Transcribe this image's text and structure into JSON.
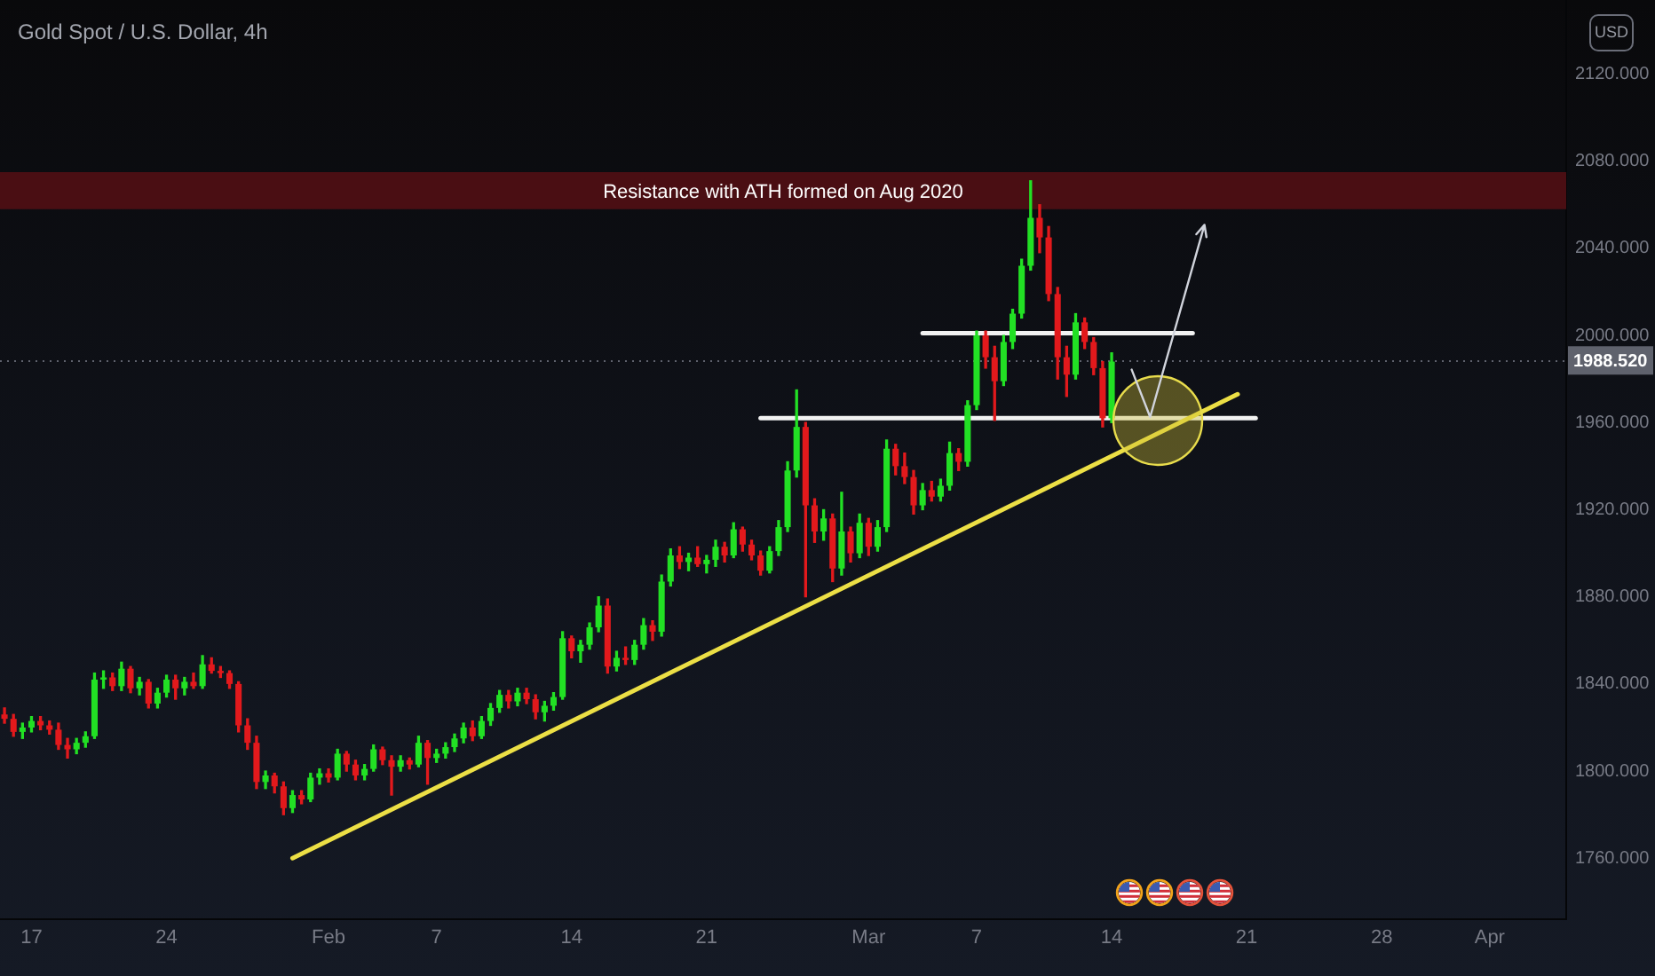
{
  "chart_data": {
    "type": "candlestick",
    "title": "Gold Spot / U.S. Dollar, 4h",
    "ylabel": "USD",
    "categories": [
      null,
      null,
      null,
      "17",
      null,
      null,
      null,
      null,
      null,
      null,
      null,
      null,
      null,
      null,
      null,
      null,
      null,
      null,
      "24",
      null,
      null,
      null,
      null,
      null,
      null,
      null,
      null,
      null,
      null,
      null,
      null,
      null,
      null,
      null,
      null,
      null,
      "Feb",
      null,
      null,
      null,
      null,
      null,
      null,
      null,
      null,
      null,
      null,
      null,
      "7",
      null,
      null,
      null,
      null,
      null,
      null,
      null,
      null,
      null,
      null,
      null,
      null,
      null,
      null,
      "14",
      null,
      null,
      null,
      null,
      null,
      null,
      null,
      null,
      null,
      null,
      null,
      null,
      null,
      null,
      "21",
      null,
      null,
      null,
      null,
      null,
      null,
      null,
      null,
      null,
      null,
      null,
      null,
      null,
      null,
      null,
      null,
      null,
      "Mar",
      null,
      null,
      null,
      null,
      null,
      null,
      null,
      null,
      null,
      null,
      null,
      "7",
      null,
      null,
      null,
      null,
      null,
      null,
      null,
      null,
      null,
      null,
      null,
      null,
      null,
      null,
      "14",
      null,
      null,
      null,
      null,
      null,
      null,
      null,
      null,
      null,
      null,
      null,
      null,
      null,
      null,
      "21",
      null,
      null,
      null,
      null,
      null,
      null,
      null,
      null,
      null,
      null,
      null,
      null,
      null,
      null,
      "28",
      null,
      null,
      null,
      null,
      null,
      null,
      null,
      null,
      null,
      null,
      null,
      "Apr",
      null,
      null,
      null,
      null,
      null,
      null,
      null,
      null
    ],
    "ohlc": [
      [
        1826,
        1829,
        1822,
        1824
      ],
      [
        1824,
        1826,
        1816,
        1818
      ],
      [
        1818,
        1822,
        1815,
        1820
      ],
      [
        1820,
        1825,
        1818,
        1823
      ],
      [
        1823,
        1825,
        1819,
        1821
      ],
      [
        1821,
        1823,
        1817,
        1819
      ],
      [
        1819,
        1822,
        1810,
        1812
      ],
      [
        1812,
        1815,
        1806,
        1810
      ],
      [
        1810,
        1815,
        1808,
        1813
      ],
      [
        1813,
        1818,
        1811,
        1816
      ],
      [
        1816,
        1845,
        1815,
        1842
      ],
      [
        1842,
        1846,
        1838,
        1843
      ],
      [
        1843,
        1845,
        1837,
        1839
      ],
      [
        1839,
        1850,
        1837,
        1847
      ],
      [
        1847,
        1848,
        1836,
        1838
      ],
      [
        1838,
        1843,
        1835,
        1841
      ],
      [
        1841,
        1842,
        1829,
        1831
      ],
      [
        1831,
        1838,
        1829,
        1836
      ],
      [
        1836,
        1844,
        1834,
        1842
      ],
      [
        1842,
        1844,
        1833,
        1838
      ],
      [
        1838,
        1843,
        1835,
        1841
      ],
      [
        1841,
        1845,
        1838,
        1839
      ],
      [
        1839,
        1853,
        1838,
        1849
      ],
      [
        1849,
        1852,
        1845,
        1846
      ],
      [
        1846,
        1848,
        1843,
        1845
      ],
      [
        1845,
        1846,
        1838,
        1840
      ],
      [
        1840,
        1841,
        1818,
        1821
      ],
      [
        1821,
        1824,
        1810,
        1813
      ],
      [
        1813,
        1816,
        1792,
        1795
      ],
      [
        1795,
        1800,
        1792,
        1798
      ],
      [
        1798,
        1799,
        1790,
        1793
      ],
      [
        1793,
        1795,
        1780,
        1783
      ],
      [
        1783,
        1791,
        1781,
        1789
      ],
      [
        1789,
        1791,
        1785,
        1787
      ],
      [
        1787,
        1799,
        1786,
        1797
      ],
      [
        1797,
        1801,
        1794,
        1799
      ],
      [
        1799,
        1801,
        1795,
        1797
      ],
      [
        1797,
        1810,
        1796,
        1808
      ],
      [
        1808,
        1809,
        1800,
        1803
      ],
      [
        1803,
        1805,
        1796,
        1798
      ],
      [
        1798,
        1803,
        1796,
        1801
      ],
      [
        1801,
        1812,
        1800,
        1810
      ],
      [
        1810,
        1811,
        1803,
        1805
      ],
      [
        1805,
        1807,
        1789,
        1802
      ],
      [
        1802,
        1807,
        1800,
        1805
      ],
      [
        1805,
        1806,
        1801,
        1803
      ],
      [
        1803,
        1816,
        1802,
        1813
      ],
      [
        1813,
        1814,
        1794,
        1806
      ],
      [
        1806,
        1810,
        1804,
        1808
      ],
      [
        1808,
        1813,
        1806,
        1811
      ],
      [
        1811,
        1817,
        1809,
        1815
      ],
      [
        1815,
        1822,
        1813,
        1820
      ],
      [
        1820,
        1823,
        1814,
        1816
      ],
      [
        1816,
        1825,
        1815,
        1823
      ],
      [
        1823,
        1831,
        1821,
        1829
      ],
      [
        1829,
        1837,
        1827,
        1835
      ],
      [
        1835,
        1837,
        1829,
        1832
      ],
      [
        1832,
        1838,
        1830,
        1836
      ],
      [
        1836,
        1838,
        1831,
        1833
      ],
      [
        1833,
        1835,
        1824,
        1827
      ],
      [
        1827,
        1832,
        1823,
        1830
      ],
      [
        1830,
        1836,
        1828,
        1834
      ],
      [
        1834,
        1864,
        1833,
        1861
      ],
      [
        1861,
        1862,
        1852,
        1855
      ],
      [
        1855,
        1860,
        1850,
        1858
      ],
      [
        1858,
        1868,
        1856,
        1866
      ],
      [
        1866,
        1880,
        1864,
        1876
      ],
      [
        1876,
        1879,
        1845,
        1848
      ],
      [
        1848,
        1855,
        1846,
        1852
      ],
      [
        1852,
        1857,
        1849,
        1851
      ],
      [
        1851,
        1860,
        1849,
        1858
      ],
      [
        1858,
        1870,
        1856,
        1867
      ],
      [
        1867,
        1869,
        1860,
        1864
      ],
      [
        1864,
        1890,
        1862,
        1887
      ],
      [
        1887,
        1902,
        1885,
        1899
      ],
      [
        1899,
        1903,
        1893,
        1896
      ],
      [
        1896,
        1900,
        1892,
        1898
      ],
      [
        1898,
        1903,
        1894,
        1895
      ],
      [
        1895,
        1899,
        1891,
        1897
      ],
      [
        1897,
        1906,
        1894,
        1903
      ],
      [
        1903,
        1905,
        1896,
        1899
      ],
      [
        1899,
        1914,
        1898,
        1911
      ],
      [
        1911,
        1912,
        1901,
        1904
      ],
      [
        1904,
        1906,
        1897,
        1899
      ],
      [
        1899,
        1901,
        1890,
        1892
      ],
      [
        1892,
        1903,
        1891,
        1901
      ],
      [
        1901,
        1915,
        1899,
        1912
      ],
      [
        1912,
        1942,
        1910,
        1938
      ],
      [
        1938,
        1975,
        1935,
        1958
      ],
      [
        1958,
        1960,
        1880,
        1922
      ],
      [
        1922,
        1925,
        1905,
        1910
      ],
      [
        1910,
        1920,
        1906,
        1916
      ],
      [
        1916,
        1918,
        1887,
        1893
      ],
      [
        1893,
        1928,
        1890,
        1910
      ],
      [
        1910,
        1912,
        1896,
        1900
      ],
      [
        1900,
        1918,
        1898,
        1914
      ],
      [
        1914,
        1916,
        1899,
        1903
      ],
      [
        1903,
        1915,
        1901,
        1912
      ],
      [
        1912,
        1952,
        1910,
        1948
      ],
      [
        1948,
        1950,
        1936,
        1940
      ],
      [
        1940,
        1946,
        1932,
        1935
      ],
      [
        1935,
        1938,
        1918,
        1922
      ],
      [
        1922,
        1932,
        1920,
        1929
      ],
      [
        1929,
        1933,
        1924,
        1926
      ],
      [
        1926,
        1934,
        1924,
        1931
      ],
      [
        1931,
        1951,
        1929,
        1946
      ],
      [
        1946,
        1948,
        1938,
        1942
      ],
      [
        1942,
        1970,
        1940,
        1968
      ],
      [
        1968,
        2002,
        1966,
        2000
      ],
      [
        2000,
        2002,
        1985,
        1990
      ],
      [
        1990,
        1995,
        1961,
        1979
      ],
      [
        1979,
        2000,
        1977,
        1997
      ],
      [
        1997,
        2012,
        1994,
        2010
      ],
      [
        2010,
        2035,
        2008,
        2032
      ],
      [
        2032,
        2071,
        2030,
        2054
      ],
      [
        2054,
        2060,
        2038,
        2045
      ],
      [
        2045,
        2050,
        2016,
        2019
      ],
      [
        2019,
        2022,
        1980,
        1990
      ],
      [
        1990,
        1995,
        1972,
        1982
      ],
      [
        1982,
        2010,
        1980,
        2006
      ],
      [
        2006,
        2008,
        1994,
        1997
      ],
      [
        1997,
        1999,
        1982,
        1985
      ],
      [
        1985,
        1988,
        1958,
        1962
      ],
      [
        1962,
        1992,
        1960,
        1988
      ],
      null,
      null,
      null,
      null,
      null,
      null,
      null,
      null,
      null,
      null,
      null,
      null,
      null,
      null,
      null,
      null,
      null,
      null,
      null,
      null,
      null,
      null,
      null,
      null,
      null,
      null,
      null,
      null,
      null,
      null,
      null,
      null,
      null,
      null,
      null,
      null,
      null,
      null,
      null,
      null,
      null,
      null,
      null,
      null,
      null,
      null,
      null,
      null,
      null,
      null
    ],
    "colors": [
      "#e2191c",
      "#e2191c",
      "#22e024",
      "#22e024",
      "#e2191c",
      "#e2191c",
      "#e2191c",
      "#e2191c",
      "#22e024",
      "#22e024",
      "#22e024",
      "#22e024",
      "#e2191c",
      "#22e024",
      "#e2191c",
      "#22e024",
      "#e2191c",
      "#22e024",
      "#22e024",
      "#e2191c",
      "#22e024",
      "#e2191c",
      "#22e024",
      "#e2191c",
      "#e2191c",
      "#e2191c",
      "#e2191c",
      "#e2191c",
      "#e2191c",
      "#22e024",
      "#e2191c",
      "#e2191c",
      "#22e024",
      "#e2191c",
      "#22e024",
      "#22e024",
      "#e2191c",
      "#22e024",
      "#e2191c",
      "#e2191c",
      "#22e024",
      "#22e024",
      "#e2191c",
      "#e2191c",
      "#22e024",
      "#e2191c",
      "#22e024",
      "#e2191c",
      "#22e024",
      "#22e024",
      "#22e024",
      "#22e024",
      "#e2191c",
      "#22e024",
      "#22e024",
      "#22e024",
      "#e2191c",
      "#22e024",
      "#e2191c",
      "#e2191c",
      "#22e024",
      "#22e024",
      "#22e024",
      "#e2191c",
      "#22e024",
      "#22e024",
      "#22e024",
      "#e2191c",
      "#22e024",
      "#e2191c",
      "#22e024",
      "#22e024",
      "#e2191c",
      "#22e024",
      "#22e024",
      "#e2191c",
      "#22e024",
      "#e2191c",
      "#22e024",
      "#22e024",
      "#e2191c",
      "#22e024",
      "#e2191c",
      "#e2191c",
      "#e2191c",
      "#22e024",
      "#22e024",
      "#22e024",
      "#22e024",
      "#e2191c",
      "#e2191c",
      "#22e024",
      "#e2191c",
      "#22e024",
      "#e2191c",
      "#22e024",
      "#e2191c",
      "#22e024",
      "#22e024",
      "#e2191c",
      "#e2191c",
      "#e2191c",
      "#22e024",
      "#e2191c",
      "#22e024",
      "#22e024",
      "#e2191c",
      "#22e024",
      "#22e024",
      "#e2191c",
      "#e2191c",
      "#22e024",
      "#22e024",
      "#22e024",
      "#22e024",
      "#e2191c",
      "#e2191c",
      "#e2191c",
      "#e2191c",
      "#22e024",
      "#e2191c",
      "#e2191c",
      "#e2191c",
      "#22e024",
      null,
      null,
      null,
      null,
      null,
      null,
      null,
      null,
      null,
      null,
      null,
      null,
      null,
      null,
      null,
      null,
      null,
      null,
      null,
      null,
      null,
      null,
      null,
      null,
      null,
      null,
      null,
      null,
      null,
      null,
      null,
      null,
      null,
      null,
      null,
      null,
      null,
      null,
      null,
      null,
      null,
      null,
      null,
      null,
      null,
      null,
      null,
      null,
      null,
      null
    ],
    "series": [
      {
        "type": "line",
        "color": "#ecdf45",
        "values": [
          null,
          null,
          null,
          null,
          null,
          null,
          null,
          null,
          null,
          null,
          null,
          null,
          null,
          null,
          null,
          null,
          null,
          null,
          null,
          null,
          null,
          null,
          null,
          null,
          null,
          null,
          null,
          null,
          null,
          null,
          null,
          null,
          1760,
          null,
          null,
          null,
          null,
          null,
          null,
          null,
          null,
          null,
          null,
          null,
          null,
          null,
          null,
          null,
          null,
          null,
          null,
          null,
          null,
          null,
          null,
          null,
          null,
          null,
          null,
          null,
          null,
          null,
          null,
          null,
          null,
          null,
          null,
          null,
          null,
          null,
          null,
          null,
          null,
          null,
          null,
          null,
          null,
          null,
          null,
          null,
          null,
          null,
          null,
          null,
          null,
          null,
          null,
          null,
          null,
          null,
          null,
          null,
          null,
          null,
          null,
          null,
          null,
          null,
          null,
          null,
          null,
          null,
          null,
          null,
          null,
          null,
          null,
          null,
          null,
          null,
          null,
          null,
          null,
          null,
          null,
          null,
          null,
          null,
          null,
          null,
          null,
          null,
          null,
          null,
          null,
          null,
          null,
          null,
          null,
          null,
          null,
          null,
          null,
          null,
          null,
          null,
          null,
          1973,
          null,
          null,
          null,
          null,
          null,
          null,
          null,
          null,
          null,
          null,
          null,
          null,
          null,
          null,
          null,
          null,
          null,
          null,
          null,
          null,
          null,
          null,
          null,
          null,
          null,
          null,
          null,
          null,
          null,
          null,
          null,
          null,
          null,
          null,
          null,
          null
        ]
      },
      {
        "type": "line",
        "color": "#f2f2f2",
        "values": [
          null,
          null,
          null,
          null,
          null,
          null,
          null,
          null,
          null,
          null,
          null,
          null,
          null,
          null,
          null,
          null,
          null,
          null,
          null,
          null,
          null,
          null,
          null,
          null,
          null,
          null,
          null,
          null,
          null,
          null,
          null,
          null,
          null,
          null,
          null,
          null,
          null,
          null,
          null,
          null,
          null,
          null,
          null,
          null,
          null,
          null,
          null,
          null,
          null,
          null,
          null,
          null,
          null,
          null,
          null,
          null,
          null,
          null,
          null,
          null,
          null,
          null,
          null,
          null,
          null,
          null,
          null,
          null,
          null,
          null,
          null,
          null,
          null,
          null,
          null,
          null,
          null,
          null,
          null,
          null,
          null,
          null,
          null,
          null,
          1962,
          null,
          null,
          null,
          null,
          null,
          null,
          null,
          null,
          null,
          null,
          null,
          null,
          null,
          null,
          null,
          null,
          null,
          null,
          null,
          null,
          null,
          null,
          null,
          null,
          null,
          null,
          null,
          null,
          null,
          null,
          null,
          null,
          null,
          null,
          null,
          null,
          null,
          null,
          null,
          null,
          null,
          null,
          null,
          null,
          null,
          null,
          null,
          null,
          null,
          null,
          null,
          null,
          null,
          null,
          1962,
          null,
          null,
          null,
          null,
          null,
          null,
          null,
          null,
          null,
          null,
          null,
          null,
          null,
          null,
          null,
          null,
          null,
          null,
          null,
          null,
          null,
          null,
          null,
          null,
          null,
          null,
          null,
          null,
          null,
          null,
          null,
          null,
          null,
          null
        ]
      },
      {
        "type": "line",
        "color": "#f2f2f2",
        "values": [
          null,
          null,
          null,
          null,
          null,
          null,
          null,
          null,
          null,
          null,
          null,
          null,
          null,
          null,
          null,
          null,
          null,
          null,
          null,
          null,
          null,
          null,
          null,
          null,
          null,
          null,
          null,
          null,
          null,
          null,
          null,
          null,
          null,
          null,
          null,
          null,
          null,
          null,
          null,
          null,
          null,
          null,
          null,
          null,
          null,
          null,
          null,
          null,
          null,
          null,
          null,
          null,
          null,
          null,
          null,
          null,
          null,
          null,
          null,
          null,
          null,
          null,
          null,
          null,
          null,
          null,
          null,
          null,
          null,
          null,
          null,
          null,
          null,
          null,
          null,
          null,
          null,
          null,
          null,
          null,
          null,
          null,
          null,
          null,
          null,
          null,
          null,
          null,
          null,
          null,
          null,
          null,
          null,
          null,
          null,
          null,
          null,
          null,
          null,
          null,
          null,
          null,
          2001,
          null,
          null,
          null,
          null,
          null,
          null,
          null,
          null,
          null,
          null,
          null,
          null,
          null,
          null,
          null,
          null,
          null,
          null,
          null,
          null,
          null,
          null,
          null,
          null,
          null,
          null,
          null,
          null,
          null,
          2001,
          null,
          null,
          null,
          null,
          null,
          null,
          null,
          null,
          null,
          null,
          null,
          null,
          null,
          null,
          null,
          null,
          null,
          null,
          null,
          null,
          null,
          null,
          null,
          null,
          null,
          null,
          null,
          null,
          null,
          null,
          null,
          null,
          null,
          null,
          null,
          null,
          null,
          null,
          null,
          null,
          null
        ]
      }
    ],
    "ylim": [
      1732,
      2154
    ],
    "yticks": [
      {
        "value": 1760,
        "label": "1760.000"
      },
      {
        "value": 1800,
        "label": "1800.000"
      },
      {
        "value": 1840,
        "label": "1840.000"
      },
      {
        "value": 1880,
        "label": "1880.000"
      },
      {
        "value": 1920,
        "label": "1920.000"
      },
      {
        "value": 1960,
        "label": "1960.000"
      },
      {
        "value": 2000,
        "label": "2000.000"
      },
      {
        "value": 2040,
        "label": "2040.000"
      },
      {
        "value": 2080,
        "label": "2080.000"
      },
      {
        "value": 2120,
        "label": "2120.000"
      }
    ],
    "bands": [
      {
        "axis": "y",
        "from": 2058,
        "to": 2075,
        "label": "Resistance with ATH formed on Aug 2020",
        "color": "#4a0e13"
      }
    ],
    "ref_lines": [
      {
        "axis": "y",
        "value": 1988.52,
        "label": "1988.520",
        "color": "#5f626d",
        "line_style": "dotted"
      }
    ]
  }
}
